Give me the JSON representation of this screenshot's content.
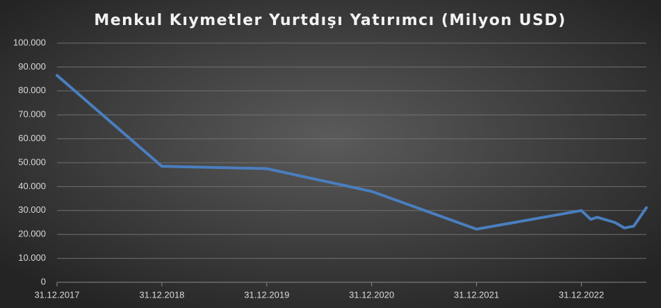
{
  "chart_data": {
    "type": "line",
    "title": "Menkul Kıymetler Yurtdışı Yatırımcı (Milyon USD)",
    "x": [
      2017,
      2018,
      2019,
      2020,
      2021,
      2022,
      2022.09,
      2022.15,
      2022.32,
      2022.41,
      2022.5,
      2022.62
    ],
    "series": [
      {
        "name": "Menkul Kıymetler Yurtdışı Yatırımcı",
        "color": "#4a7ebf",
        "values": [
          86500,
          48500,
          47500,
          38000,
          22200,
          30000,
          26300,
          27200,
          25000,
          22700,
          23500,
          31200
        ]
      }
    ],
    "xlim": [
      2017,
      2022.62
    ],
    "xticks": [
      {
        "value": 2017,
        "label": "31.12.2017"
      },
      {
        "value": 2018,
        "label": "31.12.2018"
      },
      {
        "value": 2019,
        "label": "31.12.2019"
      },
      {
        "value": 2020,
        "label": "31.12.2020"
      },
      {
        "value": 2021,
        "label": "31.12.2021"
      },
      {
        "value": 2022,
        "label": "31.12.2022"
      }
    ],
    "ylim": [
      0,
      100000
    ],
    "yticks": [
      0,
      {
        "value": 10000,
        "label": "10.000"
      },
      {
        "value": 20000,
        "label": "20.000"
      },
      {
        "value": 30000,
        "label": "30.000"
      },
      {
        "value": 40000,
        "label": "40.000"
      },
      {
        "value": 50000,
        "label": "50.000"
      },
      {
        "value": 60000,
        "label": "60.000"
      },
      {
        "value": 70000,
        "label": "70.000"
      },
      {
        "value": 80000,
        "label": "80.000"
      },
      {
        "value": 90000,
        "label": "90.000"
      },
      {
        "value": 100000,
        "label": "100.000"
      }
    ],
    "grid": true
  }
}
